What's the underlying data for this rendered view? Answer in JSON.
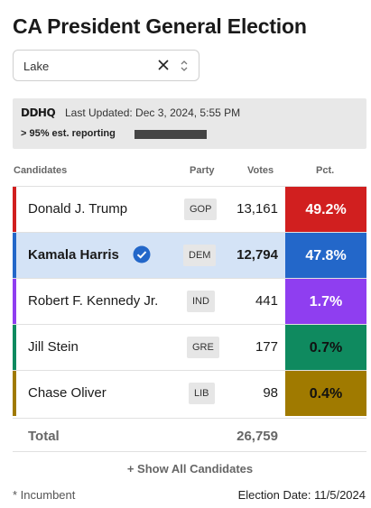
{
  "title": "CA President General Election",
  "county_select": {
    "value": "Lake",
    "clear_icon": "close-icon",
    "toggle_icon": "chevron-updown-icon"
  },
  "status": {
    "logo_text": "DDHQ",
    "last_updated": "Last Updated: Dec 3, 2024, 5:55 PM",
    "reporting": "> 95% est. reporting",
    "reporting_fraction": 0.95
  },
  "table": {
    "headers": {
      "candidates": "Candidates",
      "party": "Party",
      "votes": "Votes",
      "pct": "Pct."
    },
    "rows": [
      {
        "name": "Donald J. Trump",
        "party": "GOP",
        "votes": "13,161",
        "pct": "49.2%",
        "color": "#d11f1f",
        "pct_text_color": "#ffffff",
        "winner": false,
        "bg": "#ffffff"
      },
      {
        "name": "Kamala Harris",
        "party": "DEM",
        "votes": "12,794",
        "pct": "47.8%",
        "color": "#2367c9",
        "pct_text_color": "#ffffff",
        "winner": true,
        "bg": "#d4e3f6"
      },
      {
        "name": "Robert F. Kennedy Jr.",
        "party": "IND",
        "votes": "441",
        "pct": "1.7%",
        "color": "#8f3ef0",
        "pct_text_color": "#ffffff",
        "winner": false,
        "bg": "#ffffff"
      },
      {
        "name": "Jill Stein",
        "party": "GRE",
        "votes": "177",
        "pct": "0.7%",
        "color": "#0f8a5f",
        "pct_text_color": "#111111",
        "winner": false,
        "bg": "#ffffff"
      },
      {
        "name": "Chase Oliver",
        "party": "LIB",
        "votes": "98",
        "pct": "0.4%",
        "color": "#a07a00",
        "pct_text_color": "#111111",
        "winner": false,
        "bg": "#ffffff"
      }
    ],
    "total": {
      "label": "Total",
      "votes": "26,759"
    }
  },
  "show_all_label": "+ Show All Candidates",
  "footnote": "* Incumbent",
  "election_date": "Election Date: 11/5/2024"
}
